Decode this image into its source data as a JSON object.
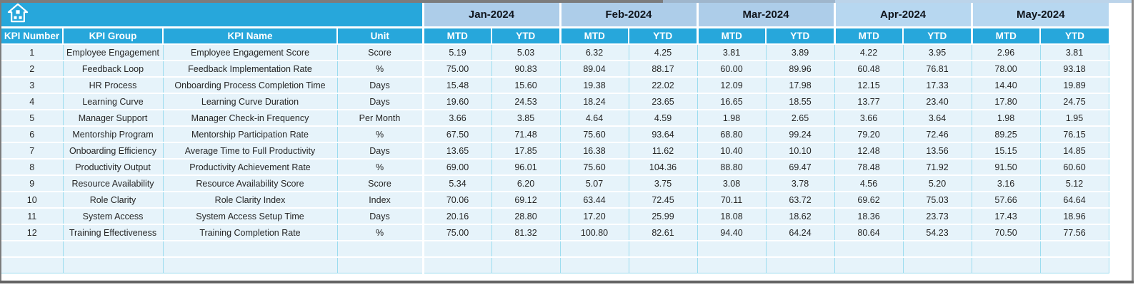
{
  "header": {
    "home_icon": "home-icon",
    "label_columns": [
      "KPI Number",
      "KPI Group",
      "KPI Name",
      "Unit"
    ],
    "months": [
      "Jan-2024",
      "Feb-2024",
      "Mar-2024",
      "Apr-2024",
      "May-2024"
    ],
    "sub_headers": [
      "MTD",
      "YTD"
    ]
  },
  "rows": [
    {
      "kpi_number": "1",
      "kpi_group": "Employee Engagement",
      "kpi_name": "Employee Engagement Score",
      "unit": "Score",
      "values": [
        "5.19",
        "5.03",
        "6.32",
        "4.25",
        "3.81",
        "3.89",
        "4.22",
        "3.95",
        "2.96",
        "3.81"
      ]
    },
    {
      "kpi_number": "2",
      "kpi_group": "Feedback Loop",
      "kpi_name": "Feedback Implementation Rate",
      "unit": "%",
      "values": [
        "75.00",
        "90.83",
        "89.04",
        "88.17",
        "60.00",
        "89.96",
        "60.48",
        "76.81",
        "78.00",
        "93.18"
      ]
    },
    {
      "kpi_number": "3",
      "kpi_group": "HR Process",
      "kpi_name": "Onboarding Process Completion Time",
      "unit": "Days",
      "values": [
        "15.48",
        "15.60",
        "19.38",
        "22.02",
        "12.09",
        "17.98",
        "12.15",
        "17.33",
        "14.40",
        "19.89"
      ]
    },
    {
      "kpi_number": "4",
      "kpi_group": "Learning Curve",
      "kpi_name": "Learning Curve Duration",
      "unit": "Days",
      "values": [
        "19.60",
        "24.53",
        "18.24",
        "23.65",
        "16.65",
        "18.55",
        "13.77",
        "23.40",
        "17.80",
        "24.75"
      ]
    },
    {
      "kpi_number": "5",
      "kpi_group": "Manager Support",
      "kpi_name": "Manager Check-in Frequency",
      "unit": "Per Month",
      "values": [
        "3.66",
        "3.85",
        "4.64",
        "4.59",
        "1.98",
        "2.65",
        "3.66",
        "3.64",
        "1.98",
        "1.95"
      ]
    },
    {
      "kpi_number": "6",
      "kpi_group": "Mentorship Program",
      "kpi_name": "Mentorship Participation Rate",
      "unit": "%",
      "values": [
        "67.50",
        "71.48",
        "75.60",
        "93.64",
        "68.80",
        "99.24",
        "79.20",
        "72.46",
        "89.25",
        "76.15"
      ]
    },
    {
      "kpi_number": "7",
      "kpi_group": "Onboarding Efficiency",
      "kpi_name": "Average Time to Full Productivity",
      "unit": "Days",
      "values": [
        "13.65",
        "17.85",
        "16.38",
        "11.62",
        "10.40",
        "10.10",
        "12.48",
        "13.56",
        "15.15",
        "14.85"
      ]
    },
    {
      "kpi_number": "8",
      "kpi_group": "Productivity Output",
      "kpi_name": "Productivity Achievement Rate",
      "unit": "%",
      "values": [
        "69.00",
        "96.01",
        "75.60",
        "104.36",
        "88.80",
        "69.47",
        "78.48",
        "71.92",
        "91.50",
        "60.60"
      ]
    },
    {
      "kpi_number": "9",
      "kpi_group": "Resource Availability",
      "kpi_name": "Resource Availability Score",
      "unit": "Score",
      "values": [
        "5.34",
        "6.20",
        "5.07",
        "3.75",
        "3.08",
        "3.78",
        "4.56",
        "5.20",
        "3.16",
        "5.12"
      ]
    },
    {
      "kpi_number": "10",
      "kpi_group": "Role Clarity",
      "kpi_name": "Role Clarity Index",
      "unit": "Index",
      "values": [
        "70.06",
        "69.12",
        "63.44",
        "72.45",
        "70.11",
        "63.72",
        "69.62",
        "75.03",
        "57.66",
        "64.64"
      ]
    },
    {
      "kpi_number": "11",
      "kpi_group": "System Access",
      "kpi_name": "System Access Setup Time",
      "unit": "Days",
      "values": [
        "20.16",
        "28.80",
        "17.20",
        "25.99",
        "18.08",
        "18.62",
        "18.36",
        "23.73",
        "17.43",
        "18.96"
      ]
    },
    {
      "kpi_number": "12",
      "kpi_group": "Training Effectiveness",
      "kpi_name": "Training Completion Rate",
      "unit": "%",
      "values": [
        "75.00",
        "81.32",
        "100.80",
        "82.61",
        "94.40",
        "64.24",
        "80.64",
        "54.23",
        "70.50",
        "77.56"
      ]
    }
  ],
  "empty_row_count": 2,
  "colors": {
    "accent_cyan": "#27a7db",
    "month_header_blue": "#adcde9",
    "month_header_blue_light": "#b7d7f0",
    "row_background": "#e6f3fa",
    "grid_line_cyan": "#9bdcef",
    "header_text": "#ffffff",
    "data_text": "#262626",
    "frame_gray": "#7c7c7c"
  }
}
